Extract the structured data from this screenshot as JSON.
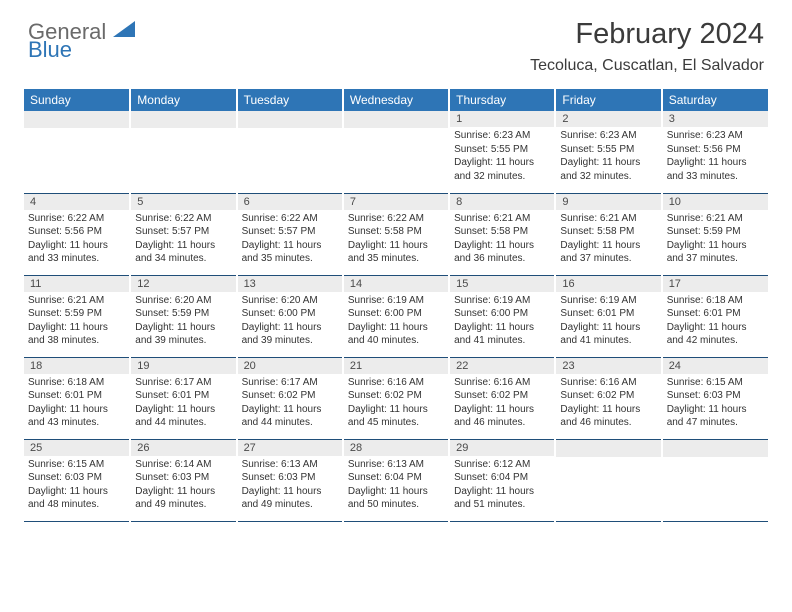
{
  "logo": {
    "text_general": "General",
    "text_blue": "Blue",
    "icon_fill": "#2e75b6"
  },
  "title": {
    "month": "February 2024",
    "location": "Tecoluca, Cuscatlan, El Salvador"
  },
  "colors": {
    "header_bg": "#2e75b6",
    "header_text": "#ffffff",
    "daynum_bg": "#ececec",
    "border": "#1f4e79"
  },
  "weekdays": [
    "Sunday",
    "Monday",
    "Tuesday",
    "Wednesday",
    "Thursday",
    "Friday",
    "Saturday"
  ],
  "weeks": [
    [
      null,
      null,
      null,
      null,
      {
        "n": "1",
        "sr": "6:23 AM",
        "ss": "5:55 PM",
        "d1": "Daylight: 11 hours",
        "d2": "and 32 minutes."
      },
      {
        "n": "2",
        "sr": "6:23 AM",
        "ss": "5:55 PM",
        "d1": "Daylight: 11 hours",
        "d2": "and 32 minutes."
      },
      {
        "n": "3",
        "sr": "6:23 AM",
        "ss": "5:56 PM",
        "d1": "Daylight: 11 hours",
        "d2": "and 33 minutes."
      }
    ],
    [
      {
        "n": "4",
        "sr": "6:22 AM",
        "ss": "5:56 PM",
        "d1": "Daylight: 11 hours",
        "d2": "and 33 minutes."
      },
      {
        "n": "5",
        "sr": "6:22 AM",
        "ss": "5:57 PM",
        "d1": "Daylight: 11 hours",
        "d2": "and 34 minutes."
      },
      {
        "n": "6",
        "sr": "6:22 AM",
        "ss": "5:57 PM",
        "d1": "Daylight: 11 hours",
        "d2": "and 35 minutes."
      },
      {
        "n": "7",
        "sr": "6:22 AM",
        "ss": "5:58 PM",
        "d1": "Daylight: 11 hours",
        "d2": "and 35 minutes."
      },
      {
        "n": "8",
        "sr": "6:21 AM",
        "ss": "5:58 PM",
        "d1": "Daylight: 11 hours",
        "d2": "and 36 minutes."
      },
      {
        "n": "9",
        "sr": "6:21 AM",
        "ss": "5:58 PM",
        "d1": "Daylight: 11 hours",
        "d2": "and 37 minutes."
      },
      {
        "n": "10",
        "sr": "6:21 AM",
        "ss": "5:59 PM",
        "d1": "Daylight: 11 hours",
        "d2": "and 37 minutes."
      }
    ],
    [
      {
        "n": "11",
        "sr": "6:21 AM",
        "ss": "5:59 PM",
        "d1": "Daylight: 11 hours",
        "d2": "and 38 minutes."
      },
      {
        "n": "12",
        "sr": "6:20 AM",
        "ss": "5:59 PM",
        "d1": "Daylight: 11 hours",
        "d2": "and 39 minutes."
      },
      {
        "n": "13",
        "sr": "6:20 AM",
        "ss": "6:00 PM",
        "d1": "Daylight: 11 hours",
        "d2": "and 39 minutes."
      },
      {
        "n": "14",
        "sr": "6:19 AM",
        "ss": "6:00 PM",
        "d1": "Daylight: 11 hours",
        "d2": "and 40 minutes."
      },
      {
        "n": "15",
        "sr": "6:19 AM",
        "ss": "6:00 PM",
        "d1": "Daylight: 11 hours",
        "d2": "and 41 minutes."
      },
      {
        "n": "16",
        "sr": "6:19 AM",
        "ss": "6:01 PM",
        "d1": "Daylight: 11 hours",
        "d2": "and 41 minutes."
      },
      {
        "n": "17",
        "sr": "6:18 AM",
        "ss": "6:01 PM",
        "d1": "Daylight: 11 hours",
        "d2": "and 42 minutes."
      }
    ],
    [
      {
        "n": "18",
        "sr": "6:18 AM",
        "ss": "6:01 PM",
        "d1": "Daylight: 11 hours",
        "d2": "and 43 minutes."
      },
      {
        "n": "19",
        "sr": "6:17 AM",
        "ss": "6:01 PM",
        "d1": "Daylight: 11 hours",
        "d2": "and 44 minutes."
      },
      {
        "n": "20",
        "sr": "6:17 AM",
        "ss": "6:02 PM",
        "d1": "Daylight: 11 hours",
        "d2": "and 44 minutes."
      },
      {
        "n": "21",
        "sr": "6:16 AM",
        "ss": "6:02 PM",
        "d1": "Daylight: 11 hours",
        "d2": "and 45 minutes."
      },
      {
        "n": "22",
        "sr": "6:16 AM",
        "ss": "6:02 PM",
        "d1": "Daylight: 11 hours",
        "d2": "and 46 minutes."
      },
      {
        "n": "23",
        "sr": "6:16 AM",
        "ss": "6:02 PM",
        "d1": "Daylight: 11 hours",
        "d2": "and 46 minutes."
      },
      {
        "n": "24",
        "sr": "6:15 AM",
        "ss": "6:03 PM",
        "d1": "Daylight: 11 hours",
        "d2": "and 47 minutes."
      }
    ],
    [
      {
        "n": "25",
        "sr": "6:15 AM",
        "ss": "6:03 PM",
        "d1": "Daylight: 11 hours",
        "d2": "and 48 minutes."
      },
      {
        "n": "26",
        "sr": "6:14 AM",
        "ss": "6:03 PM",
        "d1": "Daylight: 11 hours",
        "d2": "and 49 minutes."
      },
      {
        "n": "27",
        "sr": "6:13 AM",
        "ss": "6:03 PM",
        "d1": "Daylight: 11 hours",
        "d2": "and 49 minutes."
      },
      {
        "n": "28",
        "sr": "6:13 AM",
        "ss": "6:04 PM",
        "d1": "Daylight: 11 hours",
        "d2": "and 50 minutes."
      },
      {
        "n": "29",
        "sr": "6:12 AM",
        "ss": "6:04 PM",
        "d1": "Daylight: 11 hours",
        "d2": "and 51 minutes."
      },
      null,
      null
    ]
  ]
}
